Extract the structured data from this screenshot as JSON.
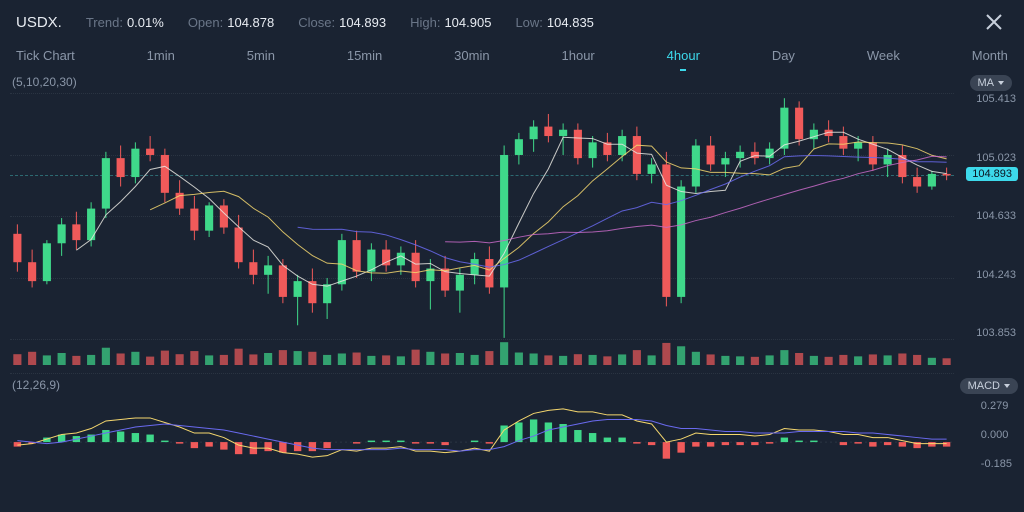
{
  "header": {
    "symbol": "USDX.",
    "trend_label": "Trend:",
    "trend_value": "0.01%",
    "open_label": "Open:",
    "open_value": "104.878",
    "close_label": "Close:",
    "close_value": "104.893",
    "high_label": "High:",
    "high_value": "104.905",
    "low_label": "Low:",
    "low_value": "104.835"
  },
  "tabs": [
    "Tick Chart",
    "1min",
    "5min",
    "15min",
    "30min",
    "1hour",
    "4hour",
    "Day",
    "Week",
    "Month"
  ],
  "active_tab_index": 6,
  "price_chart": {
    "ma_params": "(5,10,20,30)",
    "indicator_label": "MA",
    "y_min": 103.853,
    "y_max": 105.413,
    "y_ticks": [
      "105.413",
      "105.023",
      "104.893",
      "104.633",
      "104.243",
      "103.853"
    ],
    "current_price": "104.893",
    "current_price_y": 75,
    "grid_color": "#2a3442",
    "ref_line_color": "#2d6a72",
    "up_color": "#3fd88a",
    "down_color": "#f05a5a",
    "ma_colors": [
      "#e8e6e0",
      "#f5d76e",
      "#6a6af0",
      "#c86ac8"
    ],
    "candles": [
      {
        "o": 104.52,
        "h": 104.58,
        "l": 104.28,
        "c": 104.34,
        "v": 0.45
      },
      {
        "o": 104.34,
        "h": 104.42,
        "l": 104.18,
        "c": 104.22,
        "v": 0.55
      },
      {
        "o": 104.22,
        "h": 104.48,
        "l": 104.2,
        "c": 104.46,
        "v": 0.4
      },
      {
        "o": 104.46,
        "h": 104.62,
        "l": 104.38,
        "c": 104.58,
        "v": 0.5
      },
      {
        "o": 104.58,
        "h": 104.66,
        "l": 104.42,
        "c": 104.48,
        "v": 0.38
      },
      {
        "o": 104.48,
        "h": 104.72,
        "l": 104.44,
        "c": 104.68,
        "v": 0.42
      },
      {
        "o": 104.68,
        "h": 105.04,
        "l": 104.62,
        "c": 105.0,
        "v": 0.72
      },
      {
        "o": 105.0,
        "h": 105.08,
        "l": 104.82,
        "c": 104.88,
        "v": 0.48
      },
      {
        "o": 104.88,
        "h": 105.1,
        "l": 104.84,
        "c": 105.06,
        "v": 0.55
      },
      {
        "o": 105.06,
        "h": 105.14,
        "l": 104.98,
        "c": 105.02,
        "v": 0.35
      },
      {
        "o": 105.02,
        "h": 105.06,
        "l": 104.72,
        "c": 104.78,
        "v": 0.6
      },
      {
        "o": 104.78,
        "h": 104.86,
        "l": 104.64,
        "c": 104.68,
        "v": 0.45
      },
      {
        "o": 104.68,
        "h": 104.76,
        "l": 104.48,
        "c": 104.54,
        "v": 0.58
      },
      {
        "o": 104.54,
        "h": 104.72,
        "l": 104.5,
        "c": 104.7,
        "v": 0.4
      },
      {
        "o": 104.7,
        "h": 104.74,
        "l": 104.52,
        "c": 104.56,
        "v": 0.42
      },
      {
        "o": 104.56,
        "h": 104.64,
        "l": 104.3,
        "c": 104.34,
        "v": 0.68
      },
      {
        "o": 104.34,
        "h": 104.42,
        "l": 104.2,
        "c": 104.26,
        "v": 0.44
      },
      {
        "o": 104.26,
        "h": 104.38,
        "l": 104.14,
        "c": 104.32,
        "v": 0.5
      },
      {
        "o": 104.32,
        "h": 104.36,
        "l": 104.08,
        "c": 104.12,
        "v": 0.62
      },
      {
        "o": 104.12,
        "h": 104.26,
        "l": 103.94,
        "c": 104.22,
        "v": 0.58
      },
      {
        "o": 104.22,
        "h": 104.3,
        "l": 104.02,
        "c": 104.08,
        "v": 0.55
      },
      {
        "o": 104.08,
        "h": 104.24,
        "l": 103.98,
        "c": 104.2,
        "v": 0.42
      },
      {
        "o": 104.2,
        "h": 104.52,
        "l": 104.16,
        "c": 104.48,
        "v": 0.48
      },
      {
        "o": 104.48,
        "h": 104.54,
        "l": 104.24,
        "c": 104.28,
        "v": 0.52
      },
      {
        "o": 104.28,
        "h": 104.46,
        "l": 104.22,
        "c": 104.42,
        "v": 0.38
      },
      {
        "o": 104.42,
        "h": 104.48,
        "l": 104.28,
        "c": 104.32,
        "v": 0.4
      },
      {
        "o": 104.32,
        "h": 104.44,
        "l": 104.26,
        "c": 104.4,
        "v": 0.36
      },
      {
        "o": 104.4,
        "h": 104.48,
        "l": 104.18,
        "c": 104.22,
        "v": 0.64
      },
      {
        "o": 104.22,
        "h": 104.36,
        "l": 104.04,
        "c": 104.3,
        "v": 0.55
      },
      {
        "o": 104.3,
        "h": 104.38,
        "l": 104.12,
        "c": 104.16,
        "v": 0.48
      },
      {
        "o": 104.16,
        "h": 104.3,
        "l": 104.02,
        "c": 104.26,
        "v": 0.5
      },
      {
        "o": 104.26,
        "h": 104.4,
        "l": 104.2,
        "c": 104.36,
        "v": 0.42
      },
      {
        "o": 104.36,
        "h": 104.44,
        "l": 104.14,
        "c": 104.18,
        "v": 0.58
      },
      {
        "o": 104.18,
        "h": 105.08,
        "l": 103.86,
        "c": 105.02,
        "v": 0.95
      },
      {
        "o": 105.02,
        "h": 105.16,
        "l": 104.96,
        "c": 105.12,
        "v": 0.52
      },
      {
        "o": 105.12,
        "h": 105.24,
        "l": 105.04,
        "c": 105.2,
        "v": 0.48
      },
      {
        "o": 105.2,
        "h": 105.28,
        "l": 105.1,
        "c": 105.14,
        "v": 0.4
      },
      {
        "o": 105.14,
        "h": 105.22,
        "l": 105.02,
        "c": 105.18,
        "v": 0.38
      },
      {
        "o": 105.18,
        "h": 105.22,
        "l": 104.96,
        "c": 105.0,
        "v": 0.45
      },
      {
        "o": 105.0,
        "h": 105.14,
        "l": 104.94,
        "c": 105.1,
        "v": 0.42
      },
      {
        "o": 105.1,
        "h": 105.16,
        "l": 104.98,
        "c": 105.02,
        "v": 0.36
      },
      {
        "o": 105.02,
        "h": 105.18,
        "l": 104.98,
        "c": 105.14,
        "v": 0.44
      },
      {
        "o": 105.14,
        "h": 105.2,
        "l": 104.86,
        "c": 104.9,
        "v": 0.62
      },
      {
        "o": 104.9,
        "h": 105.0,
        "l": 104.84,
        "c": 104.96,
        "v": 0.4
      },
      {
        "o": 104.96,
        "h": 105.04,
        "l": 104.06,
        "c": 104.12,
        "v": 0.92
      },
      {
        "o": 104.12,
        "h": 104.86,
        "l": 104.08,
        "c": 104.82,
        "v": 0.78
      },
      {
        "o": 104.82,
        "h": 105.12,
        "l": 104.78,
        "c": 105.08,
        "v": 0.55
      },
      {
        "o": 105.08,
        "h": 105.14,
        "l": 104.92,
        "c": 104.96,
        "v": 0.44
      },
      {
        "o": 104.96,
        "h": 105.04,
        "l": 104.88,
        "c": 105.0,
        "v": 0.38
      },
      {
        "o": 105.0,
        "h": 105.08,
        "l": 104.94,
        "c": 105.04,
        "v": 0.36
      },
      {
        "o": 105.04,
        "h": 105.1,
        "l": 104.96,
        "c": 105.0,
        "v": 0.34
      },
      {
        "o": 105.0,
        "h": 105.1,
        "l": 104.96,
        "c": 105.06,
        "v": 0.4
      },
      {
        "o": 105.06,
        "h": 105.38,
        "l": 105.02,
        "c": 105.32,
        "v": 0.62
      },
      {
        "o": 105.32,
        "h": 105.36,
        "l": 105.08,
        "c": 105.12,
        "v": 0.5
      },
      {
        "o": 105.12,
        "h": 105.22,
        "l": 105.06,
        "c": 105.18,
        "v": 0.38
      },
      {
        "o": 105.18,
        "h": 105.24,
        "l": 105.1,
        "c": 105.14,
        "v": 0.34
      },
      {
        "o": 105.14,
        "h": 105.2,
        "l": 105.02,
        "c": 105.06,
        "v": 0.42
      },
      {
        "o": 105.06,
        "h": 105.14,
        "l": 104.98,
        "c": 105.1,
        "v": 0.36
      },
      {
        "o": 105.1,
        "h": 105.14,
        "l": 104.92,
        "c": 104.96,
        "v": 0.44
      },
      {
        "o": 104.96,
        "h": 105.06,
        "l": 104.88,
        "c": 105.02,
        "v": 0.4
      },
      {
        "o": 105.02,
        "h": 105.08,
        "l": 104.84,
        "c": 104.88,
        "v": 0.48
      },
      {
        "o": 104.88,
        "h": 104.94,
        "l": 104.78,
        "c": 104.82,
        "v": 0.42
      },
      {
        "o": 104.82,
        "h": 104.92,
        "l": 104.8,
        "c": 104.9,
        "v": 0.3
      },
      {
        "o": 104.9,
        "h": 104.94,
        "l": 104.86,
        "c": 104.89,
        "v": 0.28
      }
    ]
  },
  "macd": {
    "params": "(12,26,9)",
    "indicator_label": "MACD",
    "y_min": -0.185,
    "y_max": 0.279,
    "y_ticks": [
      "0.279",
      "0.000",
      "-0.185"
    ],
    "line_color": "#f5d76e",
    "signal_color": "#6a6af0",
    "hist_up_color": "#3fd88a",
    "hist_down_color": "#f05a5a",
    "values": [
      {
        "m": -0.02,
        "s": 0.01,
        "h": -0.03
      },
      {
        "m": -0.01,
        "s": 0.0,
        "h": -0.01
      },
      {
        "m": 0.02,
        "s": -0.01,
        "h": 0.03
      },
      {
        "m": 0.05,
        "s": 0.0,
        "h": 0.05
      },
      {
        "m": 0.06,
        "s": 0.02,
        "h": 0.04
      },
      {
        "m": 0.09,
        "s": 0.04,
        "h": 0.05
      },
      {
        "m": 0.14,
        "s": 0.06,
        "h": 0.08
      },
      {
        "m": 0.15,
        "s": 0.08,
        "h": 0.07
      },
      {
        "m": 0.16,
        "s": 0.1,
        "h": 0.06
      },
      {
        "m": 0.16,
        "s": 0.11,
        "h": 0.05
      },
      {
        "m": 0.13,
        "s": 0.12,
        "h": 0.01
      },
      {
        "m": 0.1,
        "s": 0.11,
        "h": -0.01
      },
      {
        "m": 0.06,
        "s": 0.1,
        "h": -0.04
      },
      {
        "m": 0.06,
        "s": 0.09,
        "h": -0.03
      },
      {
        "m": 0.03,
        "s": 0.08,
        "h": -0.05
      },
      {
        "m": -0.02,
        "s": 0.06,
        "h": -0.08
      },
      {
        "m": -0.04,
        "s": 0.04,
        "h": -0.08
      },
      {
        "m": -0.04,
        "s": 0.02,
        "h": -0.06
      },
      {
        "m": -0.07,
        "s": 0.0,
        "h": -0.07
      },
      {
        "m": -0.08,
        "s": -0.02,
        "h": -0.06
      },
      {
        "m": -0.1,
        "s": -0.04,
        "h": -0.06
      },
      {
        "m": -0.09,
        "s": -0.05,
        "h": -0.04
      },
      {
        "m": -0.05,
        "s": -0.05,
        "h": 0.0
      },
      {
        "m": -0.06,
        "s": -0.05,
        "h": -0.01
      },
      {
        "m": -0.04,
        "s": -0.05,
        "h": 0.01
      },
      {
        "m": -0.04,
        "s": -0.05,
        "h": 0.01
      },
      {
        "m": -0.03,
        "s": -0.04,
        "h": 0.01
      },
      {
        "m": -0.06,
        "s": -0.05,
        "h": -0.01
      },
      {
        "m": -0.06,
        "s": -0.05,
        "h": -0.01
      },
      {
        "m": -0.07,
        "s": -0.05,
        "h": -0.02
      },
      {
        "m": -0.06,
        "s": -0.06,
        "h": 0.0
      },
      {
        "m": -0.04,
        "s": -0.05,
        "h": 0.01
      },
      {
        "m": -0.06,
        "s": -0.05,
        "h": -0.01
      },
      {
        "m": 0.08,
        "s": -0.03,
        "h": 0.11
      },
      {
        "m": 0.14,
        "s": 0.01,
        "h": 0.13
      },
      {
        "m": 0.19,
        "s": 0.04,
        "h": 0.15
      },
      {
        "m": 0.21,
        "s": 0.08,
        "h": 0.13
      },
      {
        "m": 0.22,
        "s": 0.1,
        "h": 0.12
      },
      {
        "m": 0.2,
        "s": 0.12,
        "h": 0.08
      },
      {
        "m": 0.2,
        "s": 0.14,
        "h": 0.06
      },
      {
        "m": 0.18,
        "s": 0.15,
        "h": 0.03
      },
      {
        "m": 0.18,
        "s": 0.15,
        "h": 0.03
      },
      {
        "m": 0.14,
        "s": 0.15,
        "h": -0.01
      },
      {
        "m": 0.12,
        "s": 0.14,
        "h": -0.02
      },
      {
        "m": 0.0,
        "s": 0.11,
        "h": -0.11
      },
      {
        "m": 0.02,
        "s": 0.09,
        "h": -0.07
      },
      {
        "m": 0.06,
        "s": 0.09,
        "h": -0.03
      },
      {
        "m": 0.05,
        "s": 0.08,
        "h": -0.03
      },
      {
        "m": 0.05,
        "s": 0.07,
        "h": -0.02
      },
      {
        "m": 0.05,
        "s": 0.07,
        "h": -0.02
      },
      {
        "m": 0.04,
        "s": 0.06,
        "h": -0.02
      },
      {
        "m": 0.05,
        "s": 0.06,
        "h": -0.01
      },
      {
        "m": 0.09,
        "s": 0.06,
        "h": 0.03
      },
      {
        "m": 0.08,
        "s": 0.07,
        "h": 0.01
      },
      {
        "m": 0.08,
        "s": 0.07,
        "h": 0.01
      },
      {
        "m": 0.07,
        "s": 0.07,
        "h": 0.0
      },
      {
        "m": 0.05,
        "s": 0.07,
        "h": -0.02
      },
      {
        "m": 0.05,
        "s": 0.06,
        "h": -0.01
      },
      {
        "m": 0.03,
        "s": 0.06,
        "h": -0.03
      },
      {
        "m": 0.03,
        "s": 0.05,
        "h": -0.02
      },
      {
        "m": 0.01,
        "s": 0.04,
        "h": -0.03
      },
      {
        "m": -0.01,
        "s": 0.03,
        "h": -0.04
      },
      {
        "m": -0.01,
        "s": 0.02,
        "h": -0.03
      },
      {
        "m": -0.01,
        "s": 0.02,
        "h": -0.03
      }
    ]
  },
  "colors": {
    "bg": "#1a2332",
    "text": "#8a96a8",
    "text_bright": "#e8ecf2",
    "accent": "#3dd9eb"
  }
}
